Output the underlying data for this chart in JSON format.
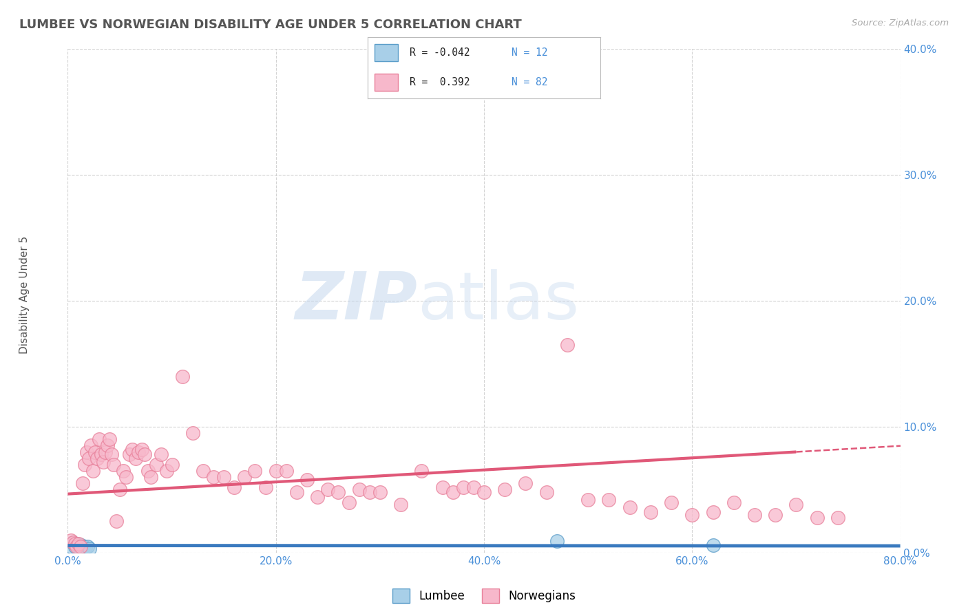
{
  "title": "LUMBEE VS NORWEGIAN DISABILITY AGE UNDER 5 CORRELATION CHART",
  "source": "Source: ZipAtlas.com",
  "ylabel": "Disability Age Under 5",
  "xlim": [
    0.0,
    0.8
  ],
  "ylim": [
    0.0,
    0.4
  ],
  "xticks": [
    0.0,
    0.2,
    0.4,
    0.6,
    0.8
  ],
  "yticks": [
    0.0,
    0.1,
    0.2,
    0.3,
    0.4
  ],
  "lumbee_color": "#a8cfe8",
  "lumbee_edge": "#5b9dc9",
  "norwegian_color": "#f7b8cb",
  "norwegian_edge": "#e8809a",
  "lumbee_R": -0.042,
  "lumbee_N": 12,
  "norwegian_R": 0.392,
  "norwegian_N": 82,
  "lumbee_line_color": "#3a7abf",
  "norwegian_line_color": "#e05878",
  "background_color": "#ffffff",
  "grid_color": "#c8c8c8",
  "watermark_zip": "ZIP",
  "watermark_atlas": "atlas",
  "lumbee_scatter_x": [
    0.003,
    0.005,
    0.007,
    0.009,
    0.011,
    0.013,
    0.015,
    0.017,
    0.019,
    0.021,
    0.47,
    0.62
  ],
  "lumbee_scatter_y": [
    0.005,
    0.008,
    0.005,
    0.007,
    0.004,
    0.006,
    0.005,
    0.004,
    0.005,
    0.003,
    0.009,
    0.006
  ],
  "norwegian_scatter_x": [
    0.003,
    0.005,
    0.007,
    0.008,
    0.01,
    0.012,
    0.014,
    0.016,
    0.018,
    0.02,
    0.022,
    0.024,
    0.026,
    0.028,
    0.03,
    0.032,
    0.034,
    0.036,
    0.038,
    0.04,
    0.042,
    0.044,
    0.047,
    0.05,
    0.053,
    0.056,
    0.059,
    0.062,
    0.065,
    0.068,
    0.071,
    0.074,
    0.077,
    0.08,
    0.085,
    0.09,
    0.095,
    0.1,
    0.11,
    0.12,
    0.13,
    0.14,
    0.15,
    0.16,
    0.17,
    0.18,
    0.19,
    0.2,
    0.21,
    0.22,
    0.23,
    0.24,
    0.25,
    0.26,
    0.27,
    0.28,
    0.29,
    0.3,
    0.32,
    0.34,
    0.36,
    0.37,
    0.38,
    0.39,
    0.4,
    0.42,
    0.44,
    0.46,
    0.48,
    0.5,
    0.52,
    0.54,
    0.56,
    0.58,
    0.6,
    0.62,
    0.64,
    0.66,
    0.68,
    0.7,
    0.72,
    0.74
  ],
  "norwegian_scatter_y": [
    0.01,
    0.008,
    0.007,
    0.005,
    0.007,
    0.005,
    0.055,
    0.07,
    0.08,
    0.075,
    0.085,
    0.065,
    0.08,
    0.075,
    0.09,
    0.078,
    0.072,
    0.08,
    0.085,
    0.09,
    0.078,
    0.07,
    0.025,
    0.05,
    0.065,
    0.06,
    0.078,
    0.082,
    0.075,
    0.08,
    0.082,
    0.078,
    0.065,
    0.06,
    0.07,
    0.078,
    0.065,
    0.07,
    0.14,
    0.095,
    0.065,
    0.06,
    0.06,
    0.052,
    0.06,
    0.065,
    0.052,
    0.065,
    0.065,
    0.048,
    0.058,
    0.044,
    0.05,
    0.048,
    0.04,
    0.05,
    0.048,
    0.048,
    0.038,
    0.065,
    0.052,
    0.048,
    0.052,
    0.052,
    0.048,
    0.05,
    0.055,
    0.048,
    0.165,
    0.042,
    0.042,
    0.036,
    0.032,
    0.04,
    0.03,
    0.032,
    0.04,
    0.03,
    0.03,
    0.038,
    0.028,
    0.028
  ]
}
